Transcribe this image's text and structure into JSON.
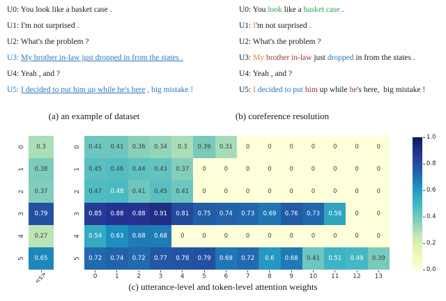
{
  "colors": {
    "black": "#1b1b1b",
    "blue": "#2e75b6",
    "green": "#2fa152",
    "orange": "#e07b2a",
    "darkred": "#953734"
  },
  "captions": {
    "a": "(a) an example of dataset",
    "b": "(b) coreference resolution",
    "c": "(c) utterance-level and token-level attention weights"
  },
  "panel_a": {
    "lines": [
      {
        "label": "U0:",
        "label_color": "black",
        "segments": [
          {
            "t": "You look like a basket case .",
            "c": "black"
          }
        ]
      },
      {
        "label": "U1:",
        "label_color": "black",
        "segments": [
          {
            "t": "I'm not surprised .",
            "c": "black"
          }
        ]
      },
      {
        "label": "U2:",
        "label_color": "black",
        "segments": [
          {
            "t": "What's the problem ?",
            "c": "black"
          }
        ]
      },
      {
        "label": "U3:",
        "label_color": "blue",
        "segments": [
          {
            "t": "My brother in-law just dropped in from the states .",
            "c": "blue",
            "u": true
          }
        ]
      },
      {
        "label": "U4:",
        "label_color": "black",
        "segments": [
          {
            "t": "Yeah , and ?",
            "c": "black"
          }
        ]
      },
      {
        "label": "U5:",
        "label_color": "blue",
        "segments": [
          {
            "t": "I decided to put him up while he's here",
            "c": "blue",
            "u": true
          },
          {
            "t": " , big mistake !",
            "c": "blue"
          }
        ]
      }
    ]
  },
  "panel_b": {
    "lines": [
      {
        "label": "U0:",
        "label_color": "black",
        "segments": [
          {
            "t": "You ",
            "c": "black"
          },
          {
            "t": "look",
            "c": "green"
          },
          {
            "t": " like a ",
            "c": "black"
          },
          {
            "t": "basket case",
            "c": "green"
          },
          {
            "t": " .",
            "c": "black"
          }
        ]
      },
      {
        "label": "U1:",
        "label_color": "black",
        "segments": [
          {
            "t": "I",
            "c": "orange"
          },
          {
            "t": "'m not surprised .",
            "c": "black"
          }
        ]
      },
      {
        "label": "U2:",
        "label_color": "black",
        "segments": [
          {
            "t": "What's the problem ?",
            "c": "black"
          }
        ]
      },
      {
        "label": "U3:",
        "label_color": "black",
        "segments": [
          {
            "t": "My",
            "c": "orange"
          },
          {
            "t": " ",
            "c": "black"
          },
          {
            "t": "brother in-law",
            "c": "darkred"
          },
          {
            "t": " just ",
            "c": "black"
          },
          {
            "t": "dropped",
            "c": "blue"
          },
          {
            "t": " in from the states .",
            "c": "black"
          }
        ]
      },
      {
        "label": "U4:",
        "label_color": "black",
        "segments": [
          {
            "t": "Yeah , and ?",
            "c": "black"
          }
        ]
      },
      {
        "label": "U5:",
        "label_color": "black",
        "segments": [
          {
            "t": "I",
            "c": "orange"
          },
          {
            "t": " ",
            "c": "black"
          },
          {
            "t": "decided to put",
            "c": "blue"
          },
          {
            "t": " ",
            "c": "black"
          },
          {
            "t": "him",
            "c": "darkred"
          },
          {
            "t": " up while ",
            "c": "black"
          },
          {
            "t": "he",
            "c": "darkred"
          },
          {
            "t": "'s here,  big mistake !",
            "c": "black"
          }
        ]
      }
    ]
  },
  "chart_data": [
    {
      "type": "heatmap",
      "title": "utterance-level attention weights",
      "rows": [
        "0",
        "1",
        "2",
        "3",
        "4",
        "5"
      ],
      "columns": [
        "<s>"
      ],
      "values": [
        [
          0.3
        ],
        [
          0.38
        ],
        [
          0.37
        ],
        [
          0.79
        ],
        [
          0.27
        ],
        [
          0.65
        ]
      ],
      "colormap": "YlGnBu",
      "vmin": 0,
      "vmax": 1
    },
    {
      "type": "heatmap",
      "title": "token-level attention weights",
      "rows": [
        "0",
        "1",
        "2",
        "3",
        "4",
        "5"
      ],
      "columns": [
        "0",
        "1",
        "2",
        "3",
        "4",
        "5",
        "6",
        "7",
        "8",
        "9",
        "10",
        "11",
        "12",
        "13"
      ],
      "values": [
        [
          0.41,
          0.41,
          0.36,
          0.34,
          0.3,
          0.39,
          0.31,
          0,
          0,
          0,
          0,
          0,
          0,
          0
        ],
        [
          0.45,
          0.46,
          0.44,
          0.43,
          0.37,
          0,
          0,
          0,
          0,
          0,
          0,
          0,
          0,
          0
        ],
        [
          0.47,
          0.48,
          0.41,
          0.45,
          0.41,
          0,
          0,
          0,
          0,
          0,
          0,
          0,
          0,
          0
        ],
        [
          0.85,
          0.88,
          0.88,
          0.91,
          0.81,
          0.75,
          0.74,
          0.73,
          0.69,
          0.76,
          0.73,
          0.56,
          0,
          0
        ],
        [
          0.54,
          0.63,
          0.68,
          0.68,
          0,
          0,
          0,
          0,
          0,
          0,
          0,
          0,
          0,
          0
        ],
        [
          0.72,
          0.74,
          0.72,
          0.77,
          0.78,
          0.79,
          0.69,
          0.72,
          0.6,
          0.68,
          0.41,
          0.51,
          0.49,
          0.39
        ]
      ],
      "colormap": "YlGnBu",
      "vmin": 0,
      "vmax": 1
    }
  ],
  "colorbar": {
    "min": 0,
    "max": 1,
    "colormap": "YlGnBu",
    "ticks": [
      "1.0",
      "0.8",
      "0.6",
      "0.4",
      "0.2",
      "0.0"
    ]
  }
}
